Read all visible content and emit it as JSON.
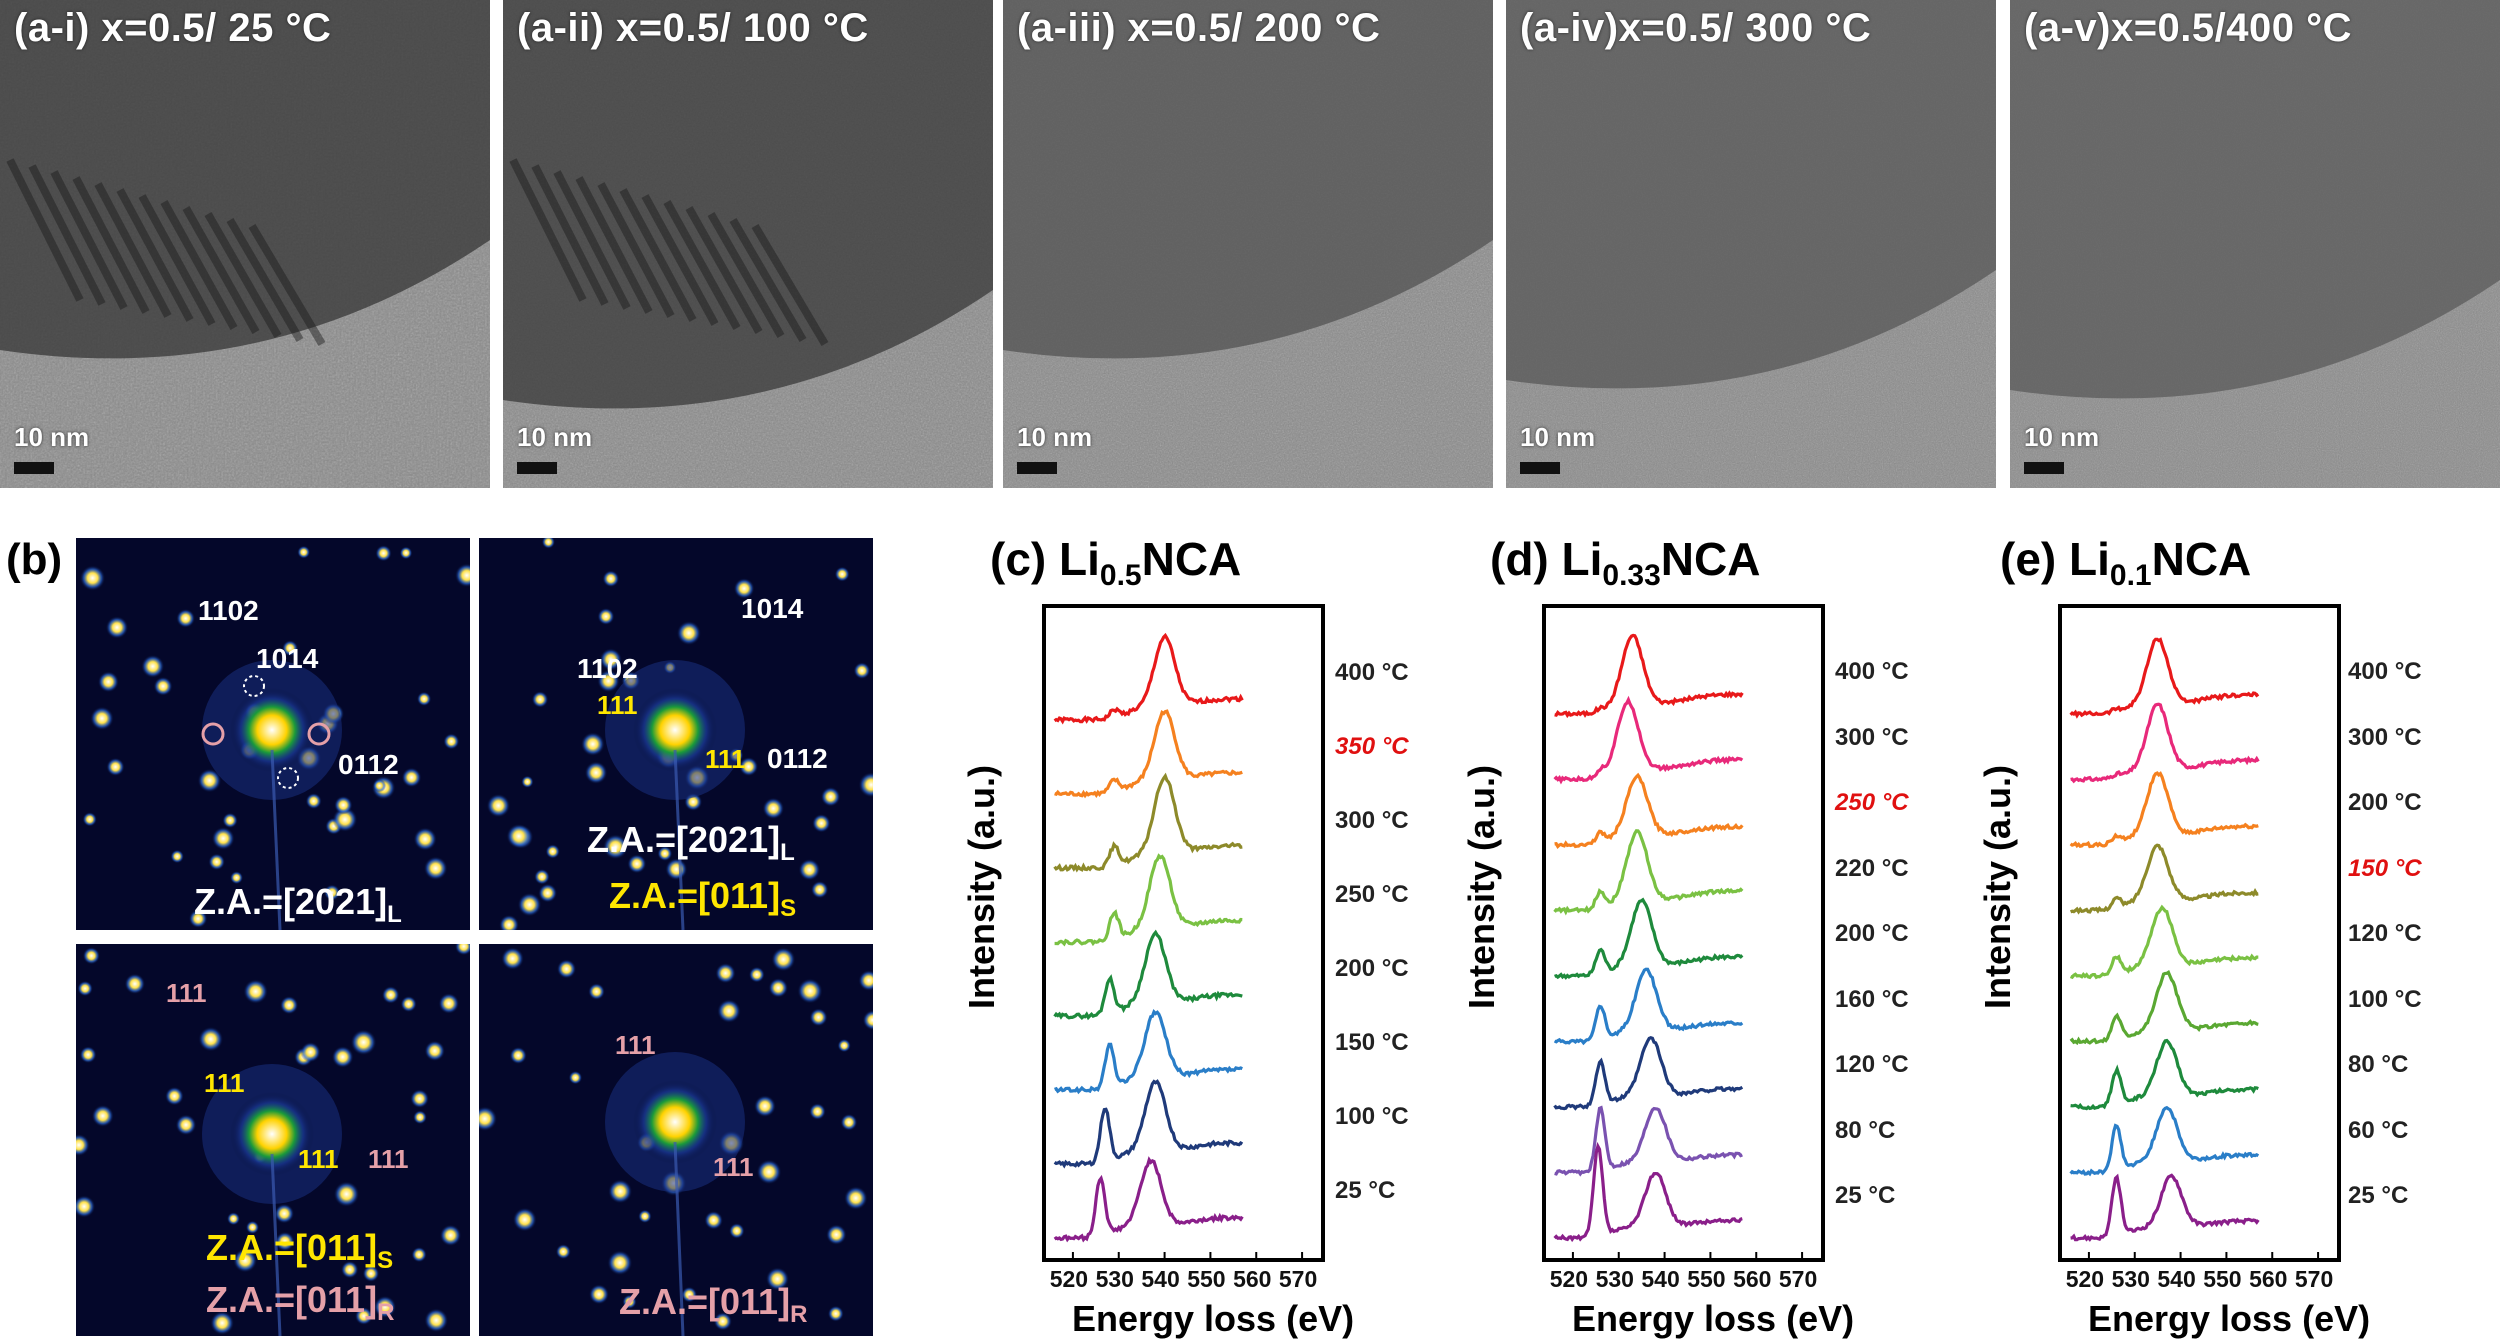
{
  "tem_panels": [
    {
      "title": "(a-i) x=0.5/ 25 °C",
      "scale": "10 nm"
    },
    {
      "title": "(a-ii) x=0.5/ 100 °C",
      "scale": "10 nm"
    },
    {
      "title": "(a-iii) x=0.5/ 200 °C",
      "scale": "10 nm"
    },
    {
      "title": "(a-iv)x=0.5/ 300 °C",
      "scale": "10 nm"
    },
    {
      "title": "(a-v)x=0.5/400 °C",
      "scale": "10 nm"
    }
  ],
  "saed": {
    "panel_label": "(b)",
    "tl": {
      "spots": [
        "1102",
        "1014",
        "0112"
      ],
      "za": "Z.A.=[2021]",
      "za_sub": "L"
    },
    "tr": {
      "spots": [
        "1102",
        "1014",
        "111",
        "111",
        "0112"
      ],
      "za1": "Z.A.=[2021]",
      "za1_sub": "L",
      "za2": "Z.A.=[011]",
      "za2_sub": "S"
    },
    "bl": {
      "spots": [
        "111",
        "111",
        "111",
        "111"
      ],
      "za1": "Z.A.=[011]",
      "za1_sub": "S",
      "za2": "Z.A.=[011]",
      "za2_sub": "R"
    },
    "br": {
      "spots": [
        "111",
        "111"
      ],
      "za": "Z.A.=[011]",
      "za_sub": "R"
    }
  },
  "colors": {
    "red": "#e8191a",
    "orange": "#f5811f",
    "olive": "#8d8a2a",
    "lime": "#7ac143",
    "green": "#1e8a3c",
    "blue": "#2a7ec8",
    "navy": "#1f3a7a",
    "purple": "#8a1f8a",
    "pink": "#e8297a",
    "violet": "#7a52b0",
    "highlight": "#e01010"
  },
  "eels_xaxis": {
    "label": "Energy loss (eV)",
    "ticks": [
      "520",
      "530",
      "540",
      "550",
      "560",
      "570"
    ]
  },
  "eels_ylabel": "Intensity (a.u.)",
  "chart_data": [
    {
      "type": "line",
      "title": "(c) Li0.5NCA",
      "title_prefix": "(c) Li",
      "title_sub": "0.5",
      "title_suffix": "NCA",
      "xlabel": "Energy loss (eV)",
      "ylabel": "Intensity (a.u.)",
      "xlim": [
        515,
        575
      ],
      "series": [
        {
          "name": "400 °C",
          "color": "#e8191a",
          "highlight": false,
          "features": {
            "pre_peak": 529,
            "pre_amp": 0.1,
            "main_peak": 540,
            "main_amp": 0.9
          }
        },
        {
          "name": "350 °C",
          "color": "#f5811f",
          "highlight": true,
          "features": {
            "pre_peak": 529,
            "pre_amp": 0.15,
            "main_peak": 540,
            "main_amp": 0.9
          }
        },
        {
          "name": "300 °C",
          "color": "#8d8a2a",
          "highlight": false,
          "features": {
            "pre_peak": 529,
            "pre_amp": 0.25,
            "main_peak": 540,
            "main_amp": 1.0
          }
        },
        {
          "name": "250 °C",
          "color": "#7ac143",
          "highlight": false,
          "features": {
            "pre_peak": 529,
            "pre_amp": 0.35,
            "main_peak": 539,
            "main_amp": 0.95
          }
        },
        {
          "name": "200 °C",
          "color": "#1e8a3c",
          "highlight": false,
          "features": {
            "pre_peak": 528,
            "pre_amp": 0.45,
            "main_peak": 538,
            "main_amp": 0.9
          }
        },
        {
          "name": "150 °C",
          "color": "#2a7ec8",
          "highlight": false,
          "features": {
            "pre_peak": 528,
            "pre_amp": 0.55,
            "main_peak": 538,
            "main_amp": 0.85
          }
        },
        {
          "name": "100 °C",
          "color": "#1f3a7a",
          "highlight": false,
          "features": {
            "pre_peak": 527,
            "pre_amp": 0.7,
            "main_peak": 538,
            "main_amp": 0.9
          }
        },
        {
          "name": "25 °C",
          "color": "#8a1f8a",
          "highlight": false,
          "features": {
            "pre_peak": 526,
            "pre_amp": 0.75,
            "main_peak": 537,
            "main_amp": 0.85
          }
        }
      ]
    },
    {
      "type": "line",
      "title": "(d) Li0.33NCA",
      "title_prefix": "(d) Li",
      "title_sub": "0.33",
      "title_suffix": "NCA",
      "xlabel": "Energy loss (eV)",
      "ylabel": "Intensity (a.u.)",
      "xlim": [
        515,
        575
      ],
      "series": [
        {
          "name": "400 °C",
          "color": "#e8191a",
          "highlight": false,
          "features": {
            "pre_peak": 526,
            "pre_amp": 0.05,
            "main_peak": 533,
            "main_amp": 1.0
          }
        },
        {
          "name": "300 °C",
          "color": "#e8297a",
          "highlight": false,
          "features": {
            "pre_peak": 526,
            "pre_amp": 0.1,
            "main_peak": 532,
            "main_amp": 1.0
          }
        },
        {
          "name": "250 °C",
          "color": "#f5811f",
          "highlight": true,
          "features": {
            "pre_peak": 526,
            "pre_amp": 0.15,
            "main_peak": 534,
            "main_amp": 0.85
          }
        },
        {
          "name": "220 °C",
          "color": "#7ac143",
          "highlight": false,
          "features": {
            "pre_peak": 526,
            "pre_amp": 0.25,
            "main_peak": 534,
            "main_amp": 1.0
          }
        },
        {
          "name": "200 °C",
          "color": "#1e8a3c",
          "highlight": false,
          "features": {
            "pre_peak": 526,
            "pre_amp": 0.35,
            "main_peak": 535,
            "main_amp": 0.95
          }
        },
        {
          "name": "160 °C",
          "color": "#2a7ec8",
          "highlight": false,
          "features": {
            "pre_peak": 526,
            "pre_amp": 0.5,
            "main_peak": 536,
            "main_amp": 0.9
          }
        },
        {
          "name": "120 °C",
          "color": "#1f3a7a",
          "highlight": false,
          "features": {
            "pre_peak": 526,
            "pre_amp": 0.65,
            "main_peak": 537,
            "main_amp": 0.85
          }
        },
        {
          "name": "80 °C",
          "color": "#7a52b0",
          "highlight": false,
          "features": {
            "pre_peak": 526,
            "pre_amp": 0.9,
            "main_peak": 538,
            "main_amp": 0.8
          }
        },
        {
          "name": "25 °C",
          "color": "#8a1f8a",
          "highlight": false,
          "features": {
            "pre_peak": 525.5,
            "pre_amp": 1.3,
            "main_peak": 538,
            "main_amp": 0.8
          }
        }
      ]
    },
    {
      "type": "line",
      "title": "(e) Li0.1NCA",
      "title_prefix": "(e) Li",
      "title_sub": "0.1",
      "title_suffix": "NCA",
      "xlabel": "Energy loss (eV)",
      "ylabel": "Intensity (a.u.)",
      "xlim": [
        515,
        575
      ],
      "series": [
        {
          "name": "400 °C",
          "color": "#e8191a",
          "highlight": false,
          "features": {
            "pre_peak": 526,
            "pre_amp": 0.05,
            "main_peak": 535,
            "main_amp": 0.95
          }
        },
        {
          "name": "300 °C",
          "color": "#e8297a",
          "highlight": false,
          "features": {
            "pre_peak": 526,
            "pre_amp": 0.05,
            "main_peak": 535,
            "main_amp": 0.95
          }
        },
        {
          "name": "200 °C",
          "color": "#f5811f",
          "highlight": false,
          "features": {
            "pre_peak": 526,
            "pre_amp": 0.1,
            "main_peak": 535,
            "main_amp": 0.9
          }
        },
        {
          "name": "150 °C",
          "color": "#8d8a2a",
          "highlight": true,
          "features": {
            "pre_peak": 526,
            "pre_amp": 0.15,
            "main_peak": 535,
            "main_amp": 0.8
          }
        },
        {
          "name": "120 °C",
          "color": "#7ac143",
          "highlight": false,
          "features": {
            "pre_peak": 526,
            "pre_amp": 0.25,
            "main_peak": 536,
            "main_amp": 0.85
          }
        },
        {
          "name": "100 °C",
          "color": "#5aa832",
          "highlight": false,
          "features": {
            "pre_peak": 526,
            "pre_amp": 0.35,
            "main_peak": 537,
            "main_amp": 0.85
          }
        },
        {
          "name": "80 °C",
          "color": "#1e8a3c",
          "highlight": false,
          "features": {
            "pre_peak": 526,
            "pre_amp": 0.5,
            "main_peak": 537,
            "main_amp": 0.8
          }
        },
        {
          "name": "60 °C",
          "color": "#2a7ec8",
          "highlight": false,
          "features": {
            "pre_peak": 526,
            "pre_amp": 0.65,
            "main_peak": 537,
            "main_amp": 0.8
          }
        },
        {
          "name": "25 °C",
          "color": "#8a1f8a",
          "highlight": false,
          "features": {
            "pre_peak": 526,
            "pre_amp": 0.85,
            "main_peak": 538,
            "main_amp": 0.75
          }
        }
      ]
    }
  ]
}
